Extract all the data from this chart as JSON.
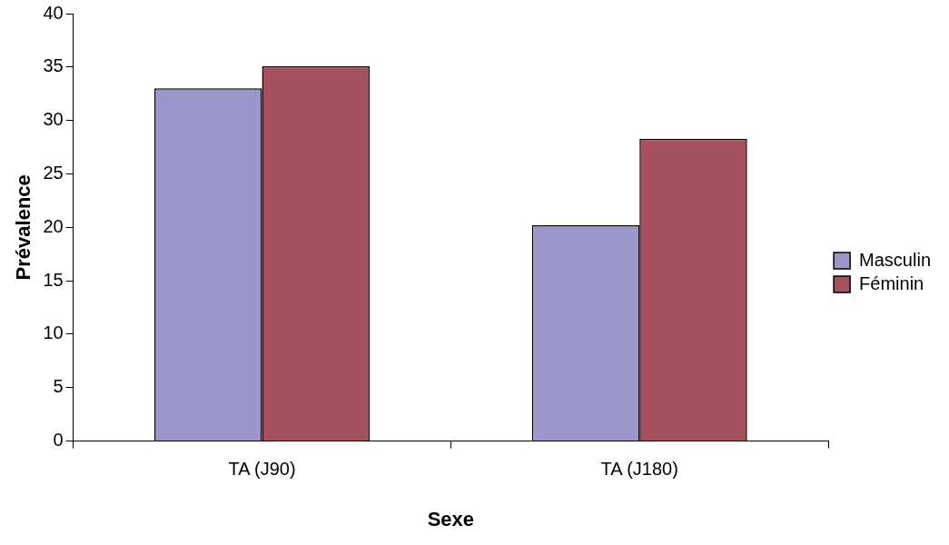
{
  "chart_data": {
    "type": "bar",
    "xlabel": "Sexe",
    "ylabel": "Prévalence",
    "categories": [
      "TA (J90)",
      "TA (J180)"
    ],
    "series": [
      {
        "name": "Masculin",
        "color": "#9b97cb",
        "values": [
          33.0,
          20.2
        ]
      },
      {
        "name": "Féminin",
        "color": "#a5505e",
        "values": [
          35.1,
          28.3
        ]
      }
    ],
    "ylim": [
      0,
      40
    ],
    "yticks": [
      0,
      5,
      10,
      15,
      20,
      25,
      30,
      35,
      40
    ],
    "grid": false,
    "legend": "right"
  }
}
